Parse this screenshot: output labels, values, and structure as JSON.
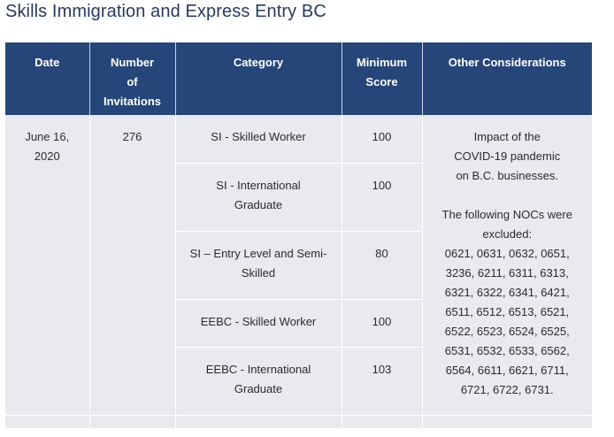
{
  "page_title": "Skills Immigration and Express Entry BC",
  "headers": {
    "date": "Date",
    "invitations_line1": "Number",
    "invitations_line2": "of",
    "invitations_line3": "Invitations",
    "category": "Category",
    "score_line1": "Minimum",
    "score_line2": "Score",
    "considerations": "Other Considerations"
  },
  "draw": {
    "date_line1": "June 16,",
    "date_line2": "2020",
    "invitations": "276",
    "rows": [
      {
        "category_line1": "SI - Skilled Worker",
        "category_line2": "",
        "score": "100"
      },
      {
        "category_line1": "SI - International",
        "category_line2": "Graduate",
        "score": "100"
      },
      {
        "category_line1": "SI – Entry Level and Semi-",
        "category_line2": "Skilled",
        "score": "80"
      },
      {
        "category_line1": "EEBC - Skilled Worker",
        "category_line2": "",
        "score": "100"
      },
      {
        "category_line1": "EEBC - International",
        "category_line2": "Graduate",
        "score": "103"
      }
    ],
    "considerations": {
      "impact_lines": [
        "Impact of the",
        "COVID-19 pandemic",
        "on B.C. businesses."
      ],
      "excluded_lines": [
        "The following NOCs were",
        "excluded:"
      ],
      "noc_lines": [
        "0621, 0631, 0632, 0651,",
        "3236, 6211, 6311, 6313,",
        "6321, 6322, 6341, 6421,",
        "6511, 6512, 6513, 6521,",
        "6522, 6523, 6524, 6525,",
        "6531, 6532, 6533, 6562,",
        "6564, 6611, 6621, 6711,",
        "6721, 6722, 6731."
      ]
    }
  },
  "colors": {
    "header_bg": "#26467a",
    "header_text": "#ffffff",
    "cell_bg": "#e8eaee",
    "title_text": "#2a3a5c"
  }
}
